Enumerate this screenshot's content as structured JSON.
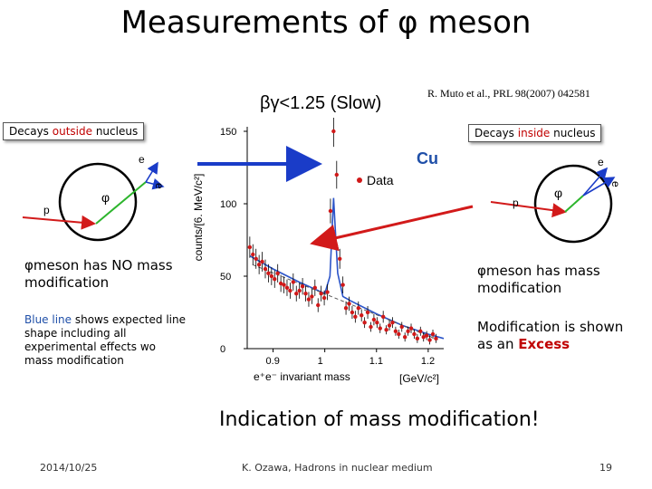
{
  "slide": {
    "title": "Measurements of φ meson",
    "slow_label": "βγ<1.25 (Slow)",
    "reference": "R. Muto et al., PRL 98(2007) 042581",
    "outside_prefix": "Decays ",
    "outside_word": "outside",
    "outside_suffix": " nucleus",
    "inside_prefix": "Decays ",
    "inside_word": "inside",
    "inside_suffix": " nucleus",
    "left_note": "φmeson has NO mass modification",
    "right_note": "φmeson has mass modification",
    "blue_word": "Blue line",
    "blue_rest": " shows expected line shape including all experimental effects wo  mass modification",
    "excess_prefix": "Modification is shown as an ",
    "excess_word": "Excess",
    "conclusion": "Indication of  mass modification!",
    "date": "2014/10/25",
    "author": "K. Ozawa, Hadrons in nuclear medium",
    "page": "19"
  },
  "diagram_left": {
    "e_top": "e",
    "e_bottom": "e",
    "phi": "φ",
    "p": "p"
  },
  "diagram_right": {
    "e_top": "e",
    "e_bottom": "e",
    "phi": "φ",
    "p": "p"
  },
  "colors": {
    "accent_red": "#c00000",
    "blue": "#1f4fa8",
    "arrow_blue": "#1a3cc8",
    "arrow_red": "#d21a1a",
    "data_red": "#d01818",
    "green": "#2db52d"
  },
  "chart_data": {
    "type": "scatter",
    "target_label": "Cu",
    "legend": [
      "Data"
    ],
    "ylabel": "counts/[6. MeV/c²]",
    "xlabel": "e⁺e⁻ invariant mass",
    "xunit": "[GeV/c²]",
    "xticks": [
      "0.9",
      "1",
      "1.1",
      "1.2"
    ],
    "yticks": [
      "0",
      "50",
      "100",
      "150"
    ],
    "xlim": [
      0.85,
      1.23
    ],
    "ylim": [
      0,
      150
    ],
    "series": [
      {
        "name": "Data",
        "x": [
          0.855,
          0.861,
          0.867,
          0.873,
          0.879,
          0.885,
          0.891,
          0.897,
          0.903,
          0.909,
          0.915,
          0.921,
          0.927,
          0.933,
          0.939,
          0.945,
          0.951,
          0.957,
          0.963,
          0.969,
          0.975,
          0.981,
          0.987,
          0.993,
          0.999,
          1.005,
          1.011,
          1.017,
          1.023,
          1.029,
          1.035,
          1.041,
          1.047,
          1.053,
          1.059,
          1.065,
          1.071,
          1.077,
          1.083,
          1.089,
          1.095,
          1.101,
          1.107,
          1.113,
          1.119,
          1.125,
          1.131,
          1.137,
          1.143,
          1.149,
          1.155,
          1.161,
          1.167,
          1.173,
          1.179,
          1.185,
          1.191,
          1.197,
          1.203,
          1.209,
          1.215
        ],
        "y": [
          70,
          65,
          62,
          58,
          60,
          55,
          52,
          50,
          48,
          52,
          45,
          44,
          42,
          40,
          46,
          38,
          40,
          43,
          38,
          34,
          36,
          42,
          30,
          38,
          35,
          39,
          95,
          150,
          120,
          62,
          44,
          28,
          31,
          25,
          22,
          28,
          23,
          18,
          25,
          15,
          20,
          18,
          14,
          22,
          13,
          16,
          18,
          12,
          10,
          15,
          8,
          12,
          14,
          10,
          7,
          12,
          8,
          9,
          6,
          10,
          7
        ]
      },
      {
        "name": "expected line shape",
        "x": [
          0.855,
          0.9,
          0.95,
          1.0,
          1.01,
          1.017,
          1.025,
          1.035,
          1.05,
          1.1,
          1.15,
          1.2,
          1.23
        ],
        "y": [
          64,
          55,
          46,
          38,
          50,
          104,
          52,
          36,
          33,
          24,
          16,
          10,
          7
        ]
      }
    ]
  }
}
